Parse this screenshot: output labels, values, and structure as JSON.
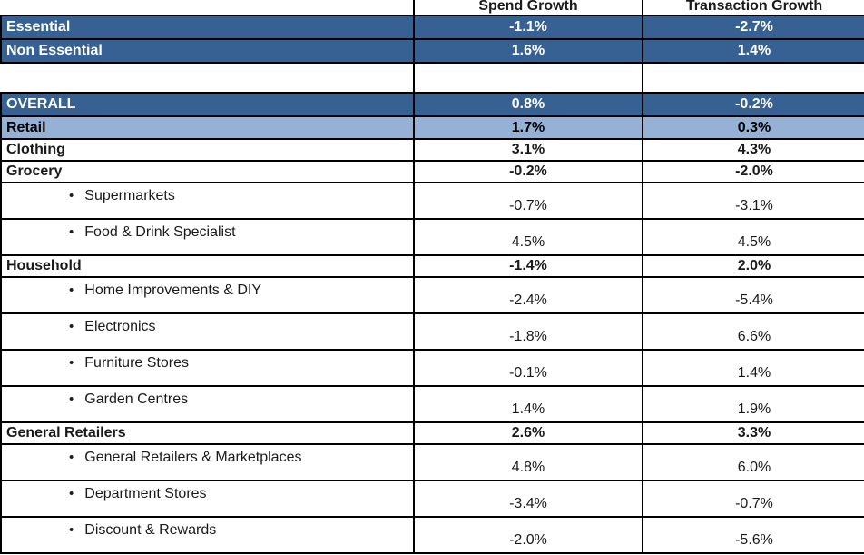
{
  "header": {
    "corner": "",
    "spend": "Spend Growth",
    "transaction": "Transaction Growth"
  },
  "colors": {
    "dark_blue": "#366192",
    "light_blue": "#95B1D6",
    "border": "#000000",
    "dark_row_text": "#ffffff",
    "default_text": "#1a1a1a"
  },
  "rows": [
    {
      "label": "Essential",
      "spend": "-1.1%",
      "transaction": "-2.7%",
      "style": "dark"
    },
    {
      "label": "Non Essential",
      "spend": "1.6%",
      "transaction": "1.4%",
      "style": "dark"
    },
    {
      "label": "",
      "spend": "",
      "transaction": "",
      "style": "blank"
    },
    {
      "label": "OVERALL",
      "spend": "0.8%",
      "transaction": "-0.2%",
      "style": "dark"
    },
    {
      "label": "Retail",
      "spend": "1.7%",
      "transaction": "0.3%",
      "style": "light"
    },
    {
      "label": "Clothing",
      "spend": "3.1%",
      "transaction": "4.3%",
      "style": "category"
    },
    {
      "label": "Grocery",
      "spend": "-0.2%",
      "transaction": "-2.0%",
      "style": "category"
    },
    {
      "label": "Supermarkets",
      "spend": "-0.7%",
      "transaction": "-3.1%",
      "style": "sub"
    },
    {
      "label": "Food & Drink Specialist",
      "spend": "4.5%",
      "transaction": "4.5%",
      "style": "sub"
    },
    {
      "label": "Household",
      "spend": "-1.4%",
      "transaction": "2.0%",
      "style": "category"
    },
    {
      "label": "Home Improvements & DIY",
      "spend": "-2.4%",
      "transaction": "-5.4%",
      "style": "sub"
    },
    {
      "label": "Electronics",
      "spend": "-1.8%",
      "transaction": "6.6%",
      "style": "sub"
    },
    {
      "label": "Furniture Stores",
      "spend": "-0.1%",
      "transaction": "1.4%",
      "style": "sub"
    },
    {
      "label": "Garden Centres",
      "spend": "1.4%",
      "transaction": "1.9%",
      "style": "sub"
    },
    {
      "label": "General Retailers",
      "spend": "2.6%",
      "transaction": "3.3%",
      "style": "category"
    },
    {
      "label": "General Retailers & Marketplaces",
      "spend": "4.8%",
      "transaction": "6.0%",
      "style": "sub"
    },
    {
      "label": "Department Stores",
      "spend": "-3.4%",
      "transaction": "-0.7%",
      "style": "sub"
    },
    {
      "label": "Discount & Rewards",
      "spend": "-2.0%",
      "transaction": "-5.6%",
      "style": "sub"
    }
  ]
}
